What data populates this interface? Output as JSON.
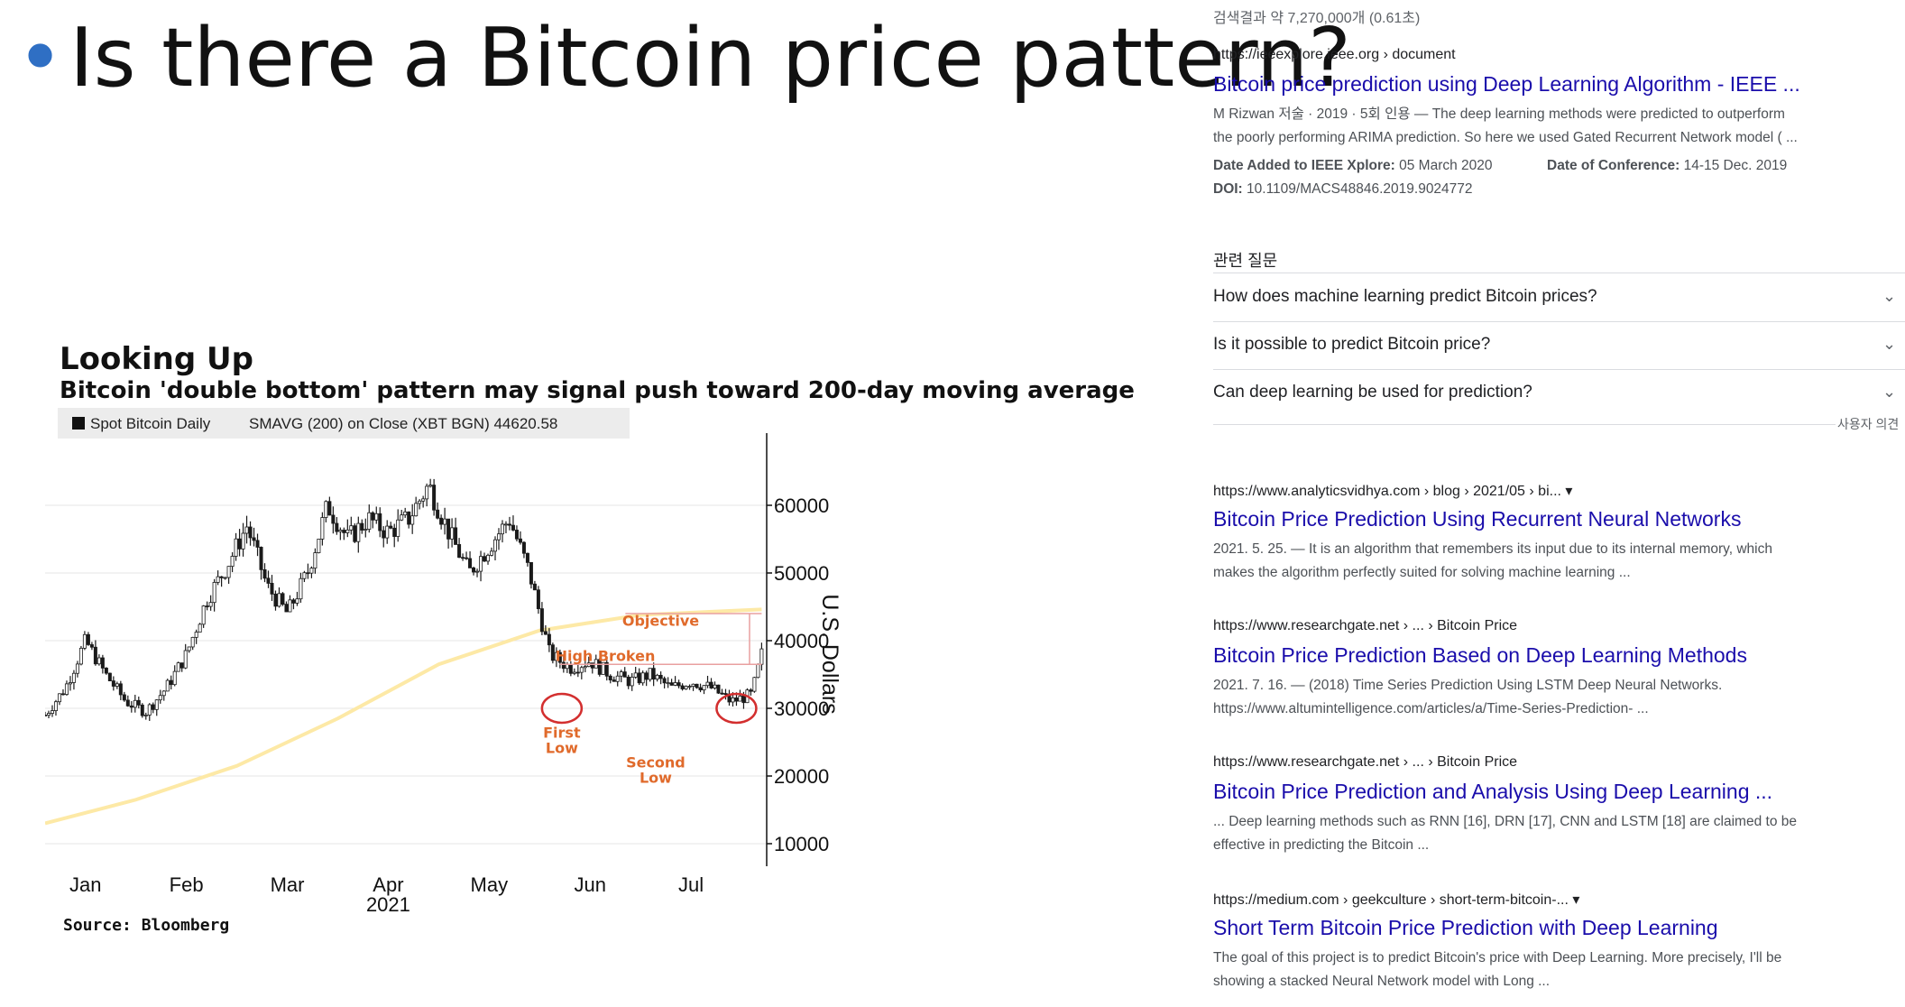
{
  "slide": {
    "bullet": "•",
    "title": "Is there a Bitcoin price pattern?"
  },
  "chart": {
    "title": "Looking Up",
    "subtitle": "Bitcoin 'double bottom' pattern may signal push toward 200-day moving average",
    "legend_spot": "Spot Bitcoin Daily",
    "legend_sma": "SMAVG (200)  on Close (XBT BGN) 44620.58",
    "source": "Source: Bloomberg",
    "colors": {
      "candle": "#1a1a1a",
      "sma": "#fde9a6",
      "annotation": "#e06a2b",
      "circle": "#d32f2f"
    }
  },
  "chart_data": {
    "type": "line",
    "title": "Looking Up",
    "subtitle": "Bitcoin 'double bottom' pattern may signal push toward 200-day moving average",
    "ylabel": "U.S. Dollars",
    "xlabel": "",
    "ylim": [
      8000,
      68000
    ],
    "y_ticks": [
      10000,
      20000,
      30000,
      40000,
      50000,
      60000
    ],
    "x_ticks": [
      "Jan",
      "Feb",
      "Mar",
      "Apr\n2021",
      "May",
      "Jun",
      "Jul"
    ],
    "x_tick_months": [
      1,
      2,
      3,
      4,
      5,
      6,
      7
    ],
    "grid": true,
    "legend_placement": "top-left",
    "series": [
      {
        "name": "Spot Bitcoin Daily",
        "x": [
          0.6,
          0.8,
          1.0,
          1.2,
          1.4,
          1.6,
          1.8,
          2.0,
          2.2,
          2.4,
          2.6,
          2.8,
          3.0,
          3.2,
          3.4,
          3.6,
          3.8,
          4.0,
          4.2,
          4.4,
          4.6,
          4.8,
          5.0,
          5.2,
          5.4,
          5.6,
          5.8,
          6.0,
          6.2,
          6.4,
          6.6,
          6.8,
          7.0,
          7.2,
          7.4,
          7.6,
          7.7
        ],
        "y": [
          29000,
          33000,
          40000,
          35000,
          31000,
          29500,
          33000,
          38000,
          46000,
          51000,
          57000,
          48000,
          44000,
          50000,
          60000,
          55000,
          58000,
          56000,
          58000,
          63000,
          56000,
          50000,
          54000,
          58000,
          50000,
          38000,
          36000,
          37000,
          35000,
          34000,
          35000,
          33000,
          34000,
          33000,
          31000,
          32000,
          38000
        ]
      },
      {
        "name": "SMAVG (200)",
        "x": [
          0.6,
          1.5,
          2.5,
          3.5,
          4.5,
          5.5,
          6.5,
          7.7
        ],
        "y": [
          13000,
          16500,
          21500,
          28500,
          36500,
          41500,
          43800,
          44620.58
        ]
      }
    ],
    "annotations": [
      "Objective",
      "High Broken",
      "First Low",
      "Second Low"
    ]
  },
  "search": {
    "result_count": "검색결과 약 7,270,000개 (0.61초)",
    "first": {
      "url": "https://ieeexplore.ieee.org › document",
      "title": "Bitcoin price prediction using Deep Learning Algorithm - IEEE ...",
      "snippet1": "M Rizwan 저술 · 2019 · 5회 인용 — The deep learning methods were predicted to outperform",
      "snippet2": "the poorly performing ARIMA prediction. So here we used Gated Recurrent Network model ( ...",
      "date_added_label": "Date Added to IEEE Xplore:",
      "date_added_value": "05 March 2020",
      "conf_label": "Date of Conference:",
      "conf_value": "14-15 Dec. 2019",
      "doi_label": "DOI:",
      "doi_value": "10.1109/MACS48846.2019.9024772"
    },
    "related": {
      "heading": "관련 질문",
      "questions": [
        "How does machine learning predict Bitcoin prices?",
        "Is it possible to predict Bitcoin price?",
        "Can deep learning be used for prediction?"
      ],
      "feedback": "사용자 의견"
    },
    "results": [
      {
        "url": "https://www.analyticsvidhya.com › blog › 2021/05 › bi...",
        "title": "Bitcoin Price Prediction Using Recurrent Neural Networks",
        "snippet1": "2021. 5. 25. — It is an algorithm that remembers its input due to its internal memory, which",
        "snippet2": "makes the algorithm perfectly suited for solving machine learning ..."
      },
      {
        "url": "https://www.researchgate.net › ... › Bitcoin Price",
        "title": "Bitcoin Price Prediction Based on Deep Learning Methods",
        "snippet1": "2021. 7. 16. — (2018) Time Series Prediction Using LSTM Deep Neural Networks.",
        "snippet2": "https://www.altumintelligence.com/articles/a/Time-Series-Prediction- ..."
      },
      {
        "url": "https://www.researchgate.net › ... › Bitcoin Price",
        "title": "Bitcoin Price Prediction and Analysis Using Deep Learning ...",
        "snippet1": "... Deep learning methods such as RNN [16], DRN [17], CNN and LSTM [18] are claimed to be",
        "snippet2": "effective in predicting the Bitcoin ..."
      },
      {
        "url": "https://medium.com › geekculture › short-term-bitcoin-...",
        "title": "Short Term Bitcoin Price Prediction with Deep Learning",
        "snippet1": "The goal of this project is to predict Bitcoin's price with Deep Learning. More precisely, I'll be",
        "snippet2": "showing a stacked Neural Network model with Long ..."
      }
    ]
  }
}
